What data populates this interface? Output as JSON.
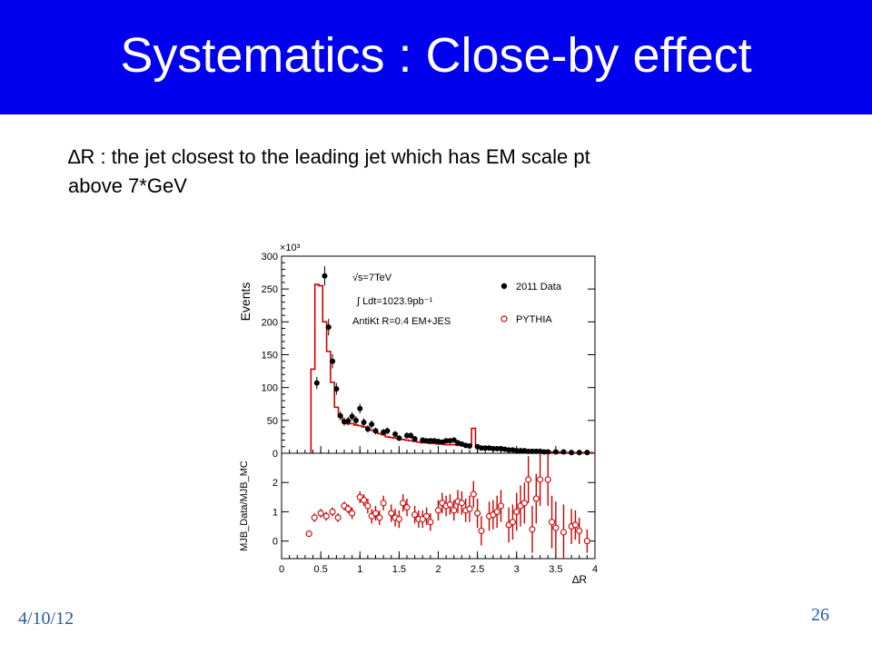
{
  "slide": {
    "title": "Systematics : Close-by effect",
    "subtitle_line1": "∆R : the jet closest to the leading jet  which has EM scale pt",
    "subtitle_line2": "above 7*GeV",
    "date": "4/10/12",
    "page_number": "26"
  },
  "colors": {
    "title_bg": "#0000ee",
    "title_text": "#ffffff",
    "data": "#000000",
    "mc": "#cc0000",
    "footer": "#2a5aa0"
  },
  "chart_data": [
    {
      "type": "line",
      "panel": "top",
      "ylabel": "Events",
      "y_multiplier": "×10³",
      "xlim": [
        0,
        4
      ],
      "ylim": [
        0,
        300
      ],
      "yticks": [
        "0",
        "50",
        "100",
        "150",
        "200",
        "250",
        "300"
      ],
      "annotations": [
        "√s=7TeV",
        "∫ Ldt=1023.9pb⁻¹",
        "AntiKt R=0.4 EM+JES"
      ],
      "legend": [
        "2011 Data",
        "PYTHIA"
      ],
      "legend_position": "top-right",
      "series": [
        {
          "name": "2011 Data",
          "x": [
            0.45,
            0.55,
            0.6,
            0.65,
            0.7,
            0.75,
            0.8,
            0.85,
            0.9,
            0.95,
            1.0,
            1.05,
            1.1,
            1.15,
            1.2,
            1.3,
            1.35,
            1.45,
            1.5,
            1.6,
            1.65,
            1.7,
            1.8,
            1.85,
            1.9,
            1.95,
            2.0,
            2.05,
            2.1,
            2.15,
            2.2,
            2.25,
            2.3,
            2.35,
            2.4,
            2.5,
            2.55,
            2.6,
            2.65,
            2.7,
            2.75,
            2.8,
            2.85,
            2.9,
            2.95,
            3.0,
            3.05,
            3.1,
            3.15,
            3.2,
            3.25,
            3.3,
            3.35,
            3.4,
            3.5,
            3.6,
            3.7,
            3.8,
            3.9
          ],
          "values": [
            107,
            270,
            192,
            140,
            98,
            57,
            48,
            49,
            56,
            50,
            68,
            47,
            37,
            44,
            34,
            32,
            34,
            29,
            23,
            27,
            27,
            22,
            20,
            19,
            19,
            19,
            18,
            17,
            19,
            19,
            20,
            16,
            14,
            12,
            11,
            10,
            8,
            8,
            8,
            7,
            7,
            7,
            6,
            5,
            5,
            4,
            4,
            4,
            3,
            3,
            3,
            3,
            2,
            2,
            2,
            2,
            1,
            1,
            1
          ]
        },
        {
          "name": "PYTHIA",
          "x": [
            0.4,
            0.45,
            0.5,
            0.55,
            0.6,
            0.65,
            0.7,
            0.75,
            0.8,
            0.85,
            0.9,
            0.95,
            1.0,
            1.05,
            1.1,
            1.15,
            1.2,
            1.25,
            1.3,
            1.35,
            1.4,
            1.45,
            1.5,
            1.55,
            1.6,
            1.65,
            1.7,
            1.75,
            1.8,
            1.85,
            1.9,
            1.95,
            2.0,
            2.05,
            2.1,
            2.15,
            2.2,
            2.25,
            2.3,
            2.35,
            2.4,
            2.45,
            2.5,
            2.55,
            2.6,
            2.65,
            2.7,
            2.75,
            2.8,
            2.85,
            2.9,
            2.95,
            3.0,
            3.05,
            3.1,
            3.15,
            3.2,
            3.25,
            3.3,
            3.35,
            3.4,
            3.45,
            3.5,
            3.55,
            3.6,
            3.65,
            3.7,
            3.75,
            3.8,
            3.85,
            3.9,
            3.95
          ],
          "values": [
            128,
            257,
            255,
            200,
            155,
            108,
            70,
            56,
            50,
            45,
            45,
            43,
            42,
            40,
            37,
            35,
            33,
            30,
            28,
            25,
            24,
            23,
            22,
            21,
            20,
            19,
            18,
            17,
            16,
            16,
            15,
            15,
            14,
            14,
            13,
            13,
            13,
            12,
            12,
            11,
            11,
            38,
            11,
            10,
            9,
            8,
            8,
            7,
            7,
            6,
            6,
            5,
            5,
            5,
            4,
            4,
            4,
            3,
            3,
            3,
            3,
            2,
            2,
            2,
            2,
            1,
            1,
            1,
            1,
            1,
            1,
            1
          ]
        }
      ]
    },
    {
      "type": "scatter",
      "panel": "bottom",
      "xlabel": "∆R",
      "ylabel": "MJB_Data/MJB_MC",
      "xlim": [
        0,
        4
      ],
      "ylim": [
        -0.6,
        3.0
      ],
      "xticks": [
        "0",
        "0.5",
        "1",
        "1.5",
        "2",
        "2.5",
        "3",
        "3.5",
        "4"
      ],
      "yticks": [
        "0",
        "1",
        "2"
      ],
      "series": [
        {
          "name": "ratio",
          "x": [
            0.35,
            0.42,
            0.5,
            0.57,
            0.65,
            0.72,
            0.8,
            0.85,
            0.9,
            1.0,
            1.05,
            1.1,
            1.15,
            1.2,
            1.25,
            1.3,
            1.4,
            1.45,
            1.5,
            1.55,
            1.6,
            1.7,
            1.75,
            1.8,
            1.85,
            1.9,
            2.0,
            2.05,
            2.1,
            2.15,
            2.2,
            2.25,
            2.3,
            2.35,
            2.4,
            2.45,
            2.5,
            2.55,
            2.65,
            2.7,
            2.75,
            2.8,
            2.9,
            2.95,
            3.0,
            3.05,
            3.1,
            3.15,
            3.2,
            3.25,
            3.3,
            3.4,
            3.45,
            3.5,
            3.6,
            3.7,
            3.75,
            3.8,
            3.9
          ],
          "values": [
            0.25,
            0.8,
            0.95,
            0.85,
            1.0,
            0.8,
            1.2,
            1.1,
            0.95,
            1.5,
            1.4,
            1.2,
            0.85,
            0.95,
            0.8,
            1.3,
            0.95,
            0.8,
            0.75,
            1.3,
            1.15,
            0.9,
            0.75,
            0.75,
            0.85,
            0.65,
            1.05,
            1.3,
            1.2,
            1.25,
            1.05,
            1.35,
            1.3,
            1.05,
            1.1,
            1.6,
            0.95,
            0.35,
            0.85,
            0.9,
            1.0,
            1.2,
            0.55,
            0.65,
            1.0,
            1.2,
            1.3,
            2.1,
            0.4,
            1.45,
            2.1,
            2.1,
            0.65,
            0.45,
            0.3,
            0.5,
            0.55,
            0.35,
            0.0
          ],
          "errors": [
            0.1,
            0.15,
            0.15,
            0.15,
            0.15,
            0.15,
            0.15,
            0.15,
            0.2,
            0.2,
            0.2,
            0.25,
            0.25,
            0.25,
            0.25,
            0.25,
            0.3,
            0.3,
            0.3,
            0.3,
            0.3,
            0.3,
            0.3,
            0.3,
            0.3,
            0.3,
            0.35,
            0.35,
            0.35,
            0.35,
            0.35,
            0.4,
            0.4,
            0.4,
            0.45,
            0.45,
            0.5,
            0.5,
            0.5,
            0.5,
            0.55,
            0.55,
            0.6,
            0.6,
            0.65,
            0.7,
            0.7,
            0.8,
            0.8,
            0.85,
            0.9,
            0.9,
            0.9,
            0.9,
            0.95,
            0.6,
            0.5,
            0.45,
            0.4
          ]
        }
      ]
    }
  ]
}
